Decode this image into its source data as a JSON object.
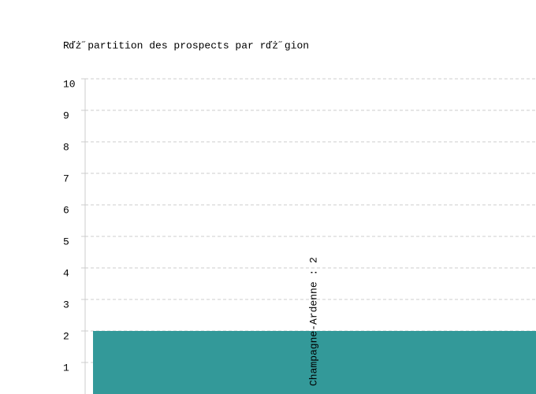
{
  "chart_data": {
    "type": "bar",
    "title": "Rďż˝partition des prospects par rďż˝gion",
    "values": [
      2
    ],
    "value_labels": [
      "Champagne-Ardenne : 2"
    ],
    "color": "#339999",
    "ylim": [
      0,
      10
    ],
    "yticks": [
      1,
      2,
      3,
      4,
      5,
      6,
      7,
      8,
      9,
      10
    ],
    "grid": true
  }
}
